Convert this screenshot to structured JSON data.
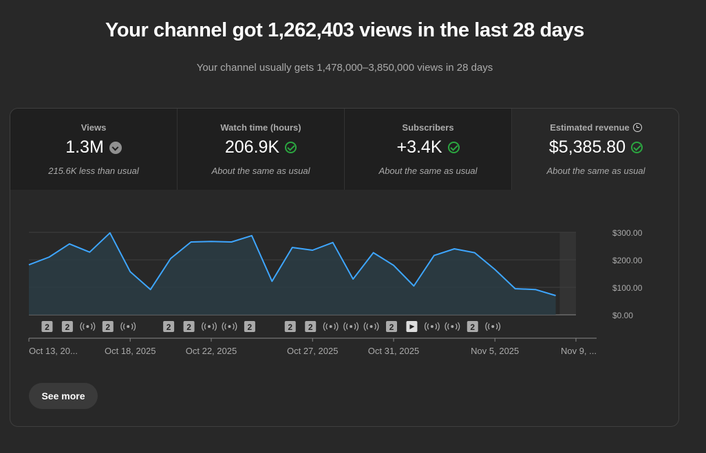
{
  "headline": "Your channel got 1,262,403 views in the last 28 days",
  "subline": "Your channel usually gets 1,478,000–3,850,000 views in 28 days",
  "metrics": [
    {
      "label": "Views",
      "value": "1.3M",
      "note": "215.6K less than usual",
      "icon": "down-arrow-icon"
    },
    {
      "label": "Watch time (hours)",
      "value": "206.9K",
      "note": "About the same as usual",
      "icon": "check-icon"
    },
    {
      "label": "Subscribers",
      "value": "+3.4K",
      "note": "About the same as usual",
      "icon": "check-icon"
    },
    {
      "label": "Estimated revenue",
      "value": "$5,385.80",
      "note": "About the same as usual",
      "icon": "check-icon",
      "label_icon": "clock-icon"
    }
  ],
  "see_more": "See more",
  "colors": {
    "line": "#3ea6ff",
    "check": "#2ba640",
    "background": "#282828"
  },
  "chart_data": {
    "type": "line",
    "metric": "Estimated revenue",
    "ylim": [
      0,
      300
    ],
    "y_ticks": [
      "$300.00",
      "$200.00",
      "$100.00",
      "$0.00"
    ],
    "x_tick_labels": [
      "Oct 13, 20...",
      "Oct 18, 2025",
      "Oct 22, 2025",
      "Oct 27, 2025",
      "Oct 31, 2025",
      "Nov 5, 2025",
      "Nov 9, ..."
    ],
    "x_tick_index": [
      0,
      5,
      9,
      14,
      18,
      23,
      27
    ],
    "x": [
      "Oct 13",
      "Oct 14",
      "Oct 15",
      "Oct 16",
      "Oct 17",
      "Oct 18",
      "Oct 19",
      "Oct 20",
      "Oct 21",
      "Oct 22",
      "Oct 23",
      "Oct 24",
      "Oct 25",
      "Oct 26",
      "Oct 27",
      "Oct 28",
      "Oct 29",
      "Oct 30",
      "Oct 31",
      "Nov 1",
      "Nov 2",
      "Nov 3",
      "Nov 4",
      "Nov 5",
      "Nov 6",
      "Nov 7",
      "Nov 8",
      "Nov 9"
    ],
    "values": [
      182,
      210,
      258,
      228,
      298,
      157,
      92,
      205,
      265,
      267,
      265,
      288,
      122,
      245,
      235,
      263,
      130,
      226,
      180,
      105,
      216,
      240,
      226,
      165,
      95,
      92,
      70,
      0
    ],
    "grid": true,
    "partial_last_period": true,
    "event_markers": [
      {
        "type": "count",
        "label": "2",
        "index": 1
      },
      {
        "type": "count",
        "label": "2",
        "index": 2
      },
      {
        "type": "live",
        "index": 3
      },
      {
        "type": "count",
        "label": "2",
        "index": 4
      },
      {
        "type": "live",
        "index": 5
      },
      {
        "type": "count",
        "label": "2",
        "index": 7
      },
      {
        "type": "count",
        "label": "2",
        "index": 8
      },
      {
        "type": "live",
        "index": 9
      },
      {
        "type": "live",
        "index": 10
      },
      {
        "type": "count",
        "label": "2",
        "index": 11
      },
      {
        "type": "count",
        "label": "2",
        "index": 13
      },
      {
        "type": "count",
        "label": "2",
        "index": 14
      },
      {
        "type": "live",
        "index": 15
      },
      {
        "type": "live",
        "index": 16
      },
      {
        "type": "live",
        "index": 17
      },
      {
        "type": "count",
        "label": "2",
        "index": 18
      },
      {
        "type": "video",
        "index": 19
      },
      {
        "type": "live",
        "index": 20
      },
      {
        "type": "live",
        "index": 21
      },
      {
        "type": "count",
        "label": "2",
        "index": 22
      },
      {
        "type": "live",
        "index": 23
      }
    ]
  }
}
